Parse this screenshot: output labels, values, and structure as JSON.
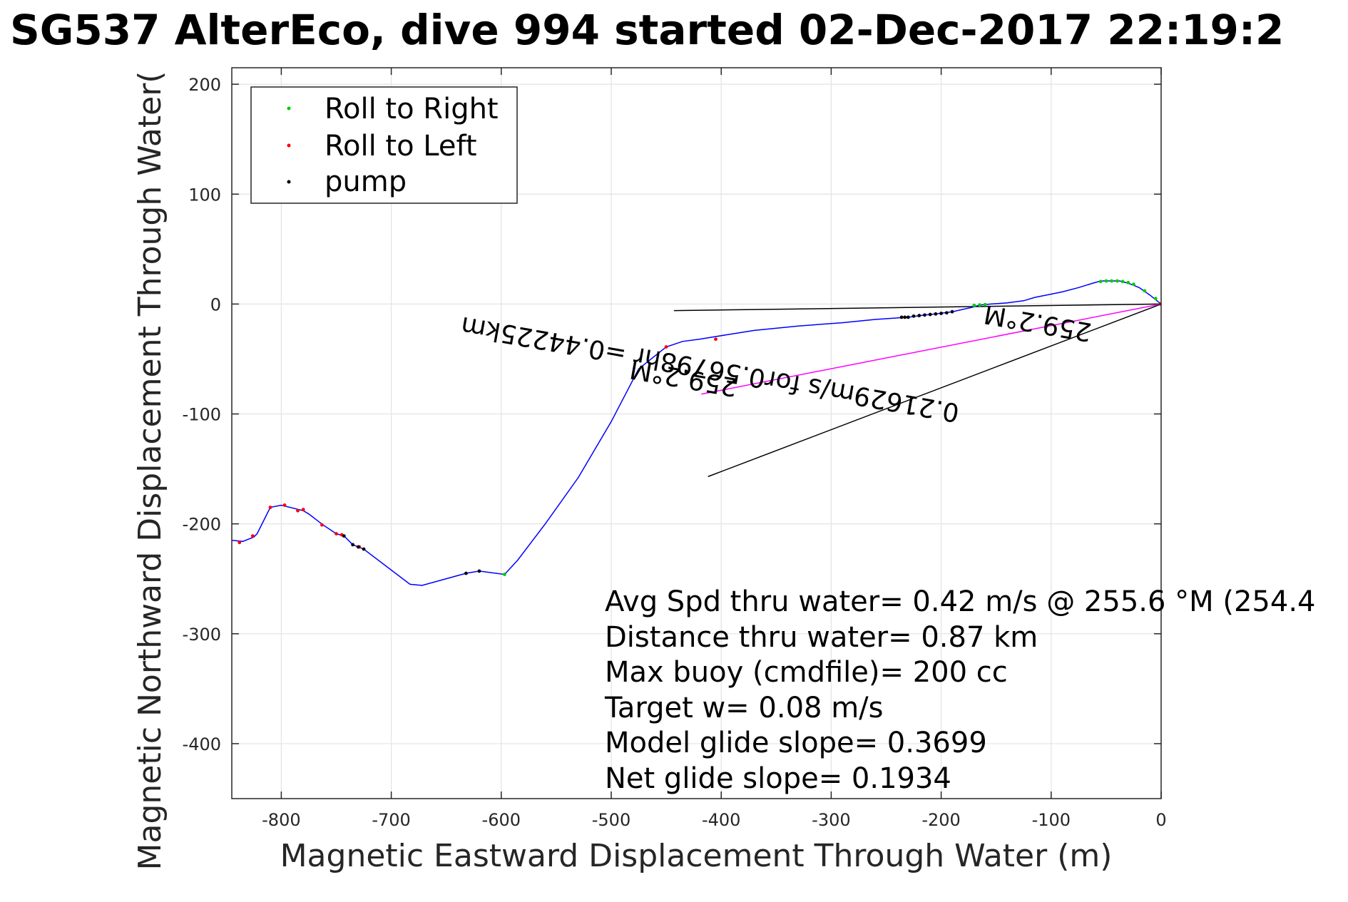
{
  "chart_data": {
    "type": "scatter",
    "title": "SG537 AlterEco, dive 994 started 02-Dec-2017 22:19:2",
    "xlabel": "Magnetic Eastward Displacement Through Water (m)",
    "ylabel": "Magnetic Northward Displacement Through Water(",
    "xlim": [
      -845,
      0
    ],
    "ylim": [
      -450,
      215
    ],
    "x_ticks": [
      -800,
      -700,
      -600,
      -500,
      -400,
      -300,
      -200,
      -100,
      0
    ],
    "y_ticks": [
      200,
      100,
      0,
      -100,
      -200,
      -300,
      -400
    ],
    "grid": true,
    "legend_position": "top-left",
    "legend": [
      {
        "label": "Roll to Right",
        "color": "#00cc00"
      },
      {
        "label": "Roll to Left",
        "color": "#ff0000"
      },
      {
        "label": "pump",
        "color": "#000000"
      }
    ],
    "track": {
      "color": "#0000ff",
      "points": [
        [
          0,
          0
        ],
        [
          -10,
          8
        ],
        [
          -20,
          15
        ],
        [
          -30,
          19
        ],
        [
          -38,
          21
        ],
        [
          -45,
          21
        ],
        [
          -55,
          21
        ],
        [
          -62,
          19
        ],
        [
          -75,
          15
        ],
        [
          -90,
          11
        ],
        [
          -100,
          9
        ],
        [
          -115,
          6
        ],
        [
          -125,
          3
        ],
        [
          -140,
          1
        ],
        [
          -155,
          0
        ],
        [
          -165,
          -1
        ],
        [
          -172,
          -3
        ],
        [
          -190,
          -7
        ],
        [
          -205,
          -9
        ],
        [
          -215,
          -10
        ],
        [
          -230,
          -12
        ],
        [
          -260,
          -14
        ],
        [
          -290,
          -17
        ],
        [
          -330,
          -20
        ],
        [
          -370,
          -24
        ],
        [
          -395,
          -28
        ],
        [
          -420,
          -32
        ],
        [
          -435,
          -34
        ],
        [
          -450,
          -39
        ],
        [
          -475,
          -59
        ],
        [
          -500,
          -107
        ],
        [
          -530,
          -158
        ],
        [
          -560,
          -200
        ],
        [
          -585,
          -233
        ],
        [
          -597,
          -246
        ],
        [
          -620,
          -243
        ],
        [
          -632,
          -245
        ],
        [
          -672,
          -256
        ],
        [
          -683,
          -255
        ],
        [
          -725,
          -223
        ],
        [
          -735,
          -219
        ],
        [
          -743,
          -211
        ],
        [
          -750,
          -209
        ],
        [
          -762,
          -201
        ],
        [
          -775,
          -191
        ],
        [
          -780,
          -188
        ],
        [
          -800,
          -183
        ],
        [
          -810,
          -185
        ],
        [
          -822,
          -209
        ],
        [
          -825,
          -212
        ],
        [
          -835,
          -216
        ],
        [
          -845,
          -215
        ]
      ]
    },
    "roll_right_points": [
      [
        -5,
        5
      ],
      [
        -15,
        12
      ],
      [
        -25,
        18
      ],
      [
        -30,
        19.5
      ],
      [
        -35,
        20.5
      ],
      [
        -40,
        21
      ],
      [
        -45,
        21
      ],
      [
        -50,
        21
      ],
      [
        -55,
        20.5
      ],
      [
        -160,
        -0.5
      ],
      [
        -165,
        -0.8
      ],
      [
        -170,
        -1.2
      ],
      [
        -597,
        -246
      ]
    ],
    "roll_left_points": [
      [
        -450,
        -39
      ],
      [
        -405,
        -32
      ],
      [
        -763,
        -201
      ],
      [
        -780,
        -187
      ],
      [
        -785,
        -188
      ],
      [
        -797,
        -183
      ],
      [
        -810,
        -185
      ],
      [
        -826,
        -211
      ],
      [
        -838,
        -217
      ],
      [
        -745,
        -210
      ],
      [
        -750,
        -209
      ],
      [
        -729,
        -221
      ],
      [
        -0.5,
        0
      ]
    ],
    "pump_points": [
      [
        -205,
        -9
      ],
      [
        -210,
        -9.5
      ],
      [
        -215,
        -10
      ],
      [
        -220,
        -10.5
      ],
      [
        -225,
        -11
      ],
      [
        -230,
        -12
      ],
      [
        -233,
        -12
      ],
      [
        -236,
        -12
      ],
      [
        -190,
        -7
      ],
      [
        -195,
        -8
      ],
      [
        -200,
        -8.5
      ],
      [
        -632,
        -245
      ],
      [
        -620,
        -243
      ],
      [
        -735,
        -219
      ],
      [
        -730,
        -221
      ],
      [
        -725,
        -223
      ],
      [
        -743,
        -211
      ]
    ],
    "guide_lines": [
      {
        "from": [
          0,
          0
        ],
        "to": [
          -443,
          -6
        ],
        "color": "#000000"
      },
      {
        "from": [
          0,
          0
        ],
        "to": [
          -412,
          -157
        ],
        "color": "#000000"
      }
    ],
    "magenta_line": {
      "from": [
        0,
        0
      ],
      "to": [
        -418,
        -82
      ],
      "color": "#ff00ff"
    },
    "annotations": [
      {
        "text": "0.21629m/s for0.56798hr =0.44225km",
        "x": -410,
        "y": -58,
        "rotate": 190
      },
      {
        "text": "259.2°M",
        "x": -112,
        "y": -16,
        "rotate": 190
      },
      {
        "text": "259.2°M",
        "x": -434,
        "y": -66,
        "rotate": 190
      }
    ],
    "stats": [
      "Avg Spd thru water=  0.42 m/s @ 255.6 °M (254.4",
      "Distance thru water=  0.87 km",
      "Max buoy (cmdfile)= 200 cc",
      "Target w= 0.08 m/s",
      "Model glide slope= 0.3699",
      "Net glide slope= 0.1934"
    ]
  }
}
